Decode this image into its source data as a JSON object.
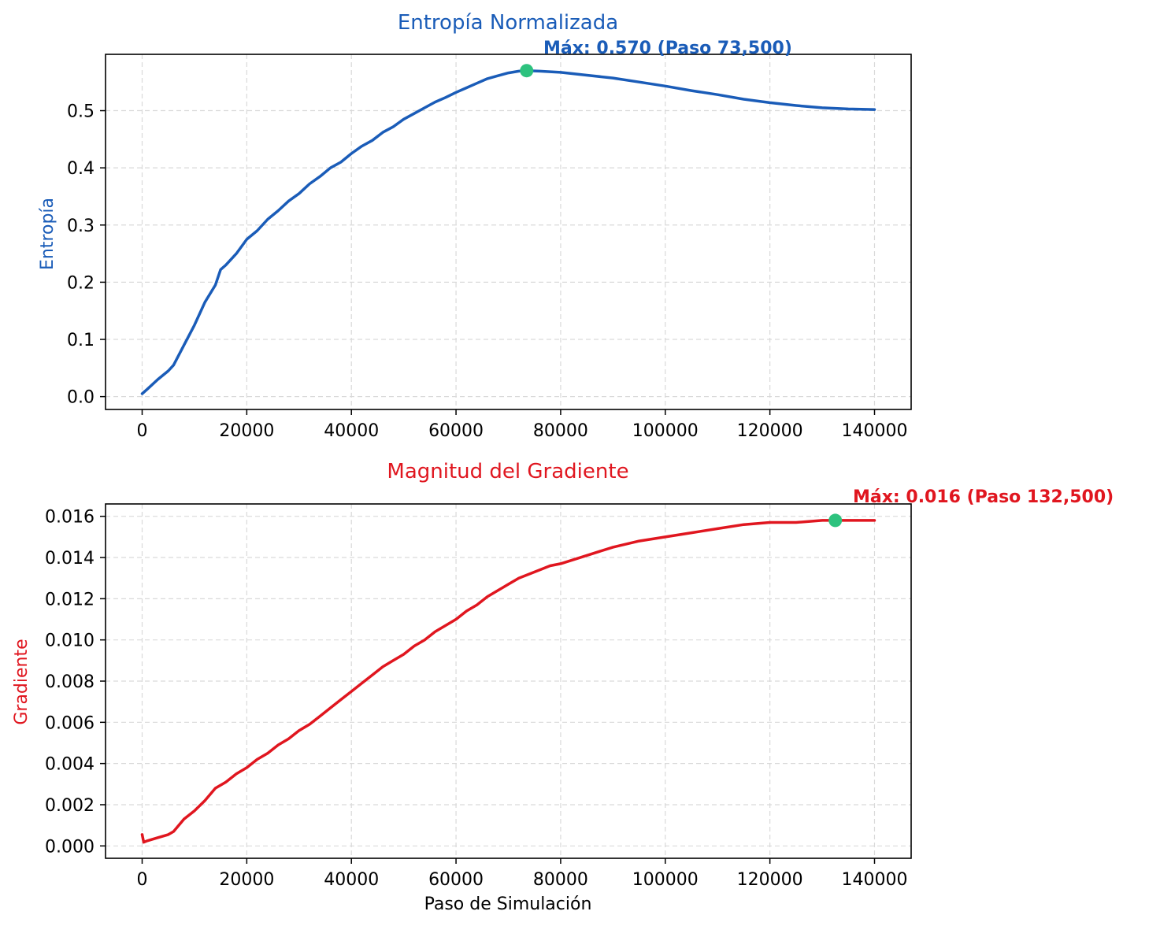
{
  "chart_data": [
    {
      "type": "line",
      "title": "Entropía Normalizada",
      "xlabel": "",
      "ylabel": "Entropía",
      "color": "#1a5cb8",
      "xlim": [
        -7000,
        147000
      ],
      "ylim": [
        -0.0225,
        0.5985
      ],
      "xticks": [
        0,
        20000,
        40000,
        60000,
        80000,
        100000,
        120000,
        140000
      ],
      "xtick_labels": [
        "0",
        "20000",
        "40000",
        "60000",
        "80000",
        "100000",
        "120000",
        "140000"
      ],
      "yticks": [
        0.0,
        0.1,
        0.2,
        0.3,
        0.4,
        0.5
      ],
      "ytick_labels": [
        "0.0",
        "0.1",
        "0.2",
        "0.3",
        "0.4",
        "0.5"
      ],
      "grid": true,
      "series": [
        {
          "x": [
            0,
            1000,
            3000,
            5000,
            6000,
            8000,
            10000,
            12000,
            14000,
            15000,
            16000,
            18000,
            20000,
            22000,
            24000,
            26000,
            28000,
            30000,
            32000,
            34000,
            36000,
            38000,
            40000,
            42000,
            44000,
            46000,
            48000,
            50000,
            52000,
            54000,
            56000,
            58000,
            60000,
            62000,
            64000,
            66000,
            68000,
            70000,
            72000,
            73500,
            76000,
            80000,
            85000,
            90000,
            95000,
            100000,
            105000,
            110000,
            115000,
            120000,
            125000,
            130000,
            135000,
            140000
          ],
          "y": [
            0.005,
            0.013,
            0.03,
            0.045,
            0.055,
            0.09,
            0.125,
            0.165,
            0.195,
            0.222,
            0.23,
            0.25,
            0.275,
            0.29,
            0.31,
            0.325,
            0.342,
            0.355,
            0.372,
            0.385,
            0.4,
            0.41,
            0.425,
            0.438,
            0.448,
            0.462,
            0.472,
            0.485,
            0.495,
            0.505,
            0.515,
            0.523,
            0.532,
            0.54,
            0.548,
            0.556,
            0.561,
            0.566,
            0.569,
            0.57,
            0.569,
            0.567,
            0.562,
            0.557,
            0.55,
            0.543,
            0.535,
            0.528,
            0.52,
            0.514,
            0.509,
            0.505,
            0.503,
            0.502
          ]
        }
      ],
      "marker": {
        "x": 73500,
        "y": 0.57,
        "color": "#2dc27e"
      },
      "annotation": "Máx: 0.570 (Paso 73,500)"
    },
    {
      "type": "line",
      "title": "Magnitud del Gradiente",
      "xlabel": "Paso de Simulación",
      "ylabel": "Gradiente",
      "color": "#e0161f",
      "xlim": [
        -7000,
        147000
      ],
      "ylim": [
        -0.0006,
        0.0166
      ],
      "xticks": [
        0,
        20000,
        40000,
        60000,
        80000,
        100000,
        120000,
        140000
      ],
      "xtick_labels": [
        "0",
        "20000",
        "40000",
        "60000",
        "80000",
        "100000",
        "120000",
        "140000"
      ],
      "yticks": [
        0.0,
        0.002,
        0.004,
        0.006,
        0.008,
        0.01,
        0.012,
        0.014,
        0.016
      ],
      "ytick_labels": [
        "0.000",
        "0.002",
        "0.004",
        "0.006",
        "0.008",
        "0.010",
        "0.012",
        "0.014",
        "0.016"
      ],
      "grid": true,
      "series": [
        {
          "x": [
            0,
            300,
            1000,
            3000,
            5000,
            6000,
            8000,
            10000,
            12000,
            14000,
            16000,
            18000,
            20000,
            22000,
            24000,
            26000,
            28000,
            30000,
            32000,
            34000,
            36000,
            38000,
            40000,
            42000,
            44000,
            46000,
            48000,
            50000,
            52000,
            54000,
            56000,
            58000,
            60000,
            62000,
            64000,
            66000,
            68000,
            70000,
            72000,
            74000,
            76000,
            78000,
            80000,
            85000,
            90000,
            95000,
            100000,
            105000,
            110000,
            115000,
            120000,
            125000,
            130000,
            132500,
            135000,
            140000
          ],
          "y": [
            0.00055,
            0.00018,
            0.00025,
            0.0004,
            0.00055,
            0.0007,
            0.0013,
            0.0017,
            0.0022,
            0.0028,
            0.0031,
            0.0035,
            0.0038,
            0.0042,
            0.0045,
            0.0049,
            0.0052,
            0.0056,
            0.0059,
            0.0063,
            0.0067,
            0.0071,
            0.0075,
            0.0079,
            0.0083,
            0.0087,
            0.009,
            0.0093,
            0.0097,
            0.01,
            0.0104,
            0.0107,
            0.011,
            0.0114,
            0.0117,
            0.0121,
            0.0124,
            0.0127,
            0.013,
            0.0132,
            0.0134,
            0.0136,
            0.0137,
            0.0141,
            0.0145,
            0.0148,
            0.015,
            0.0152,
            0.0154,
            0.0156,
            0.0157,
            0.0157,
            0.0158,
            0.0158,
            0.0158,
            0.0158
          ]
        }
      ],
      "marker": {
        "x": 132500,
        "y": 0.0158,
        "color": "#2dc27e"
      },
      "annotation": "Máx: 0.016 (Paso 132,500)"
    }
  ]
}
